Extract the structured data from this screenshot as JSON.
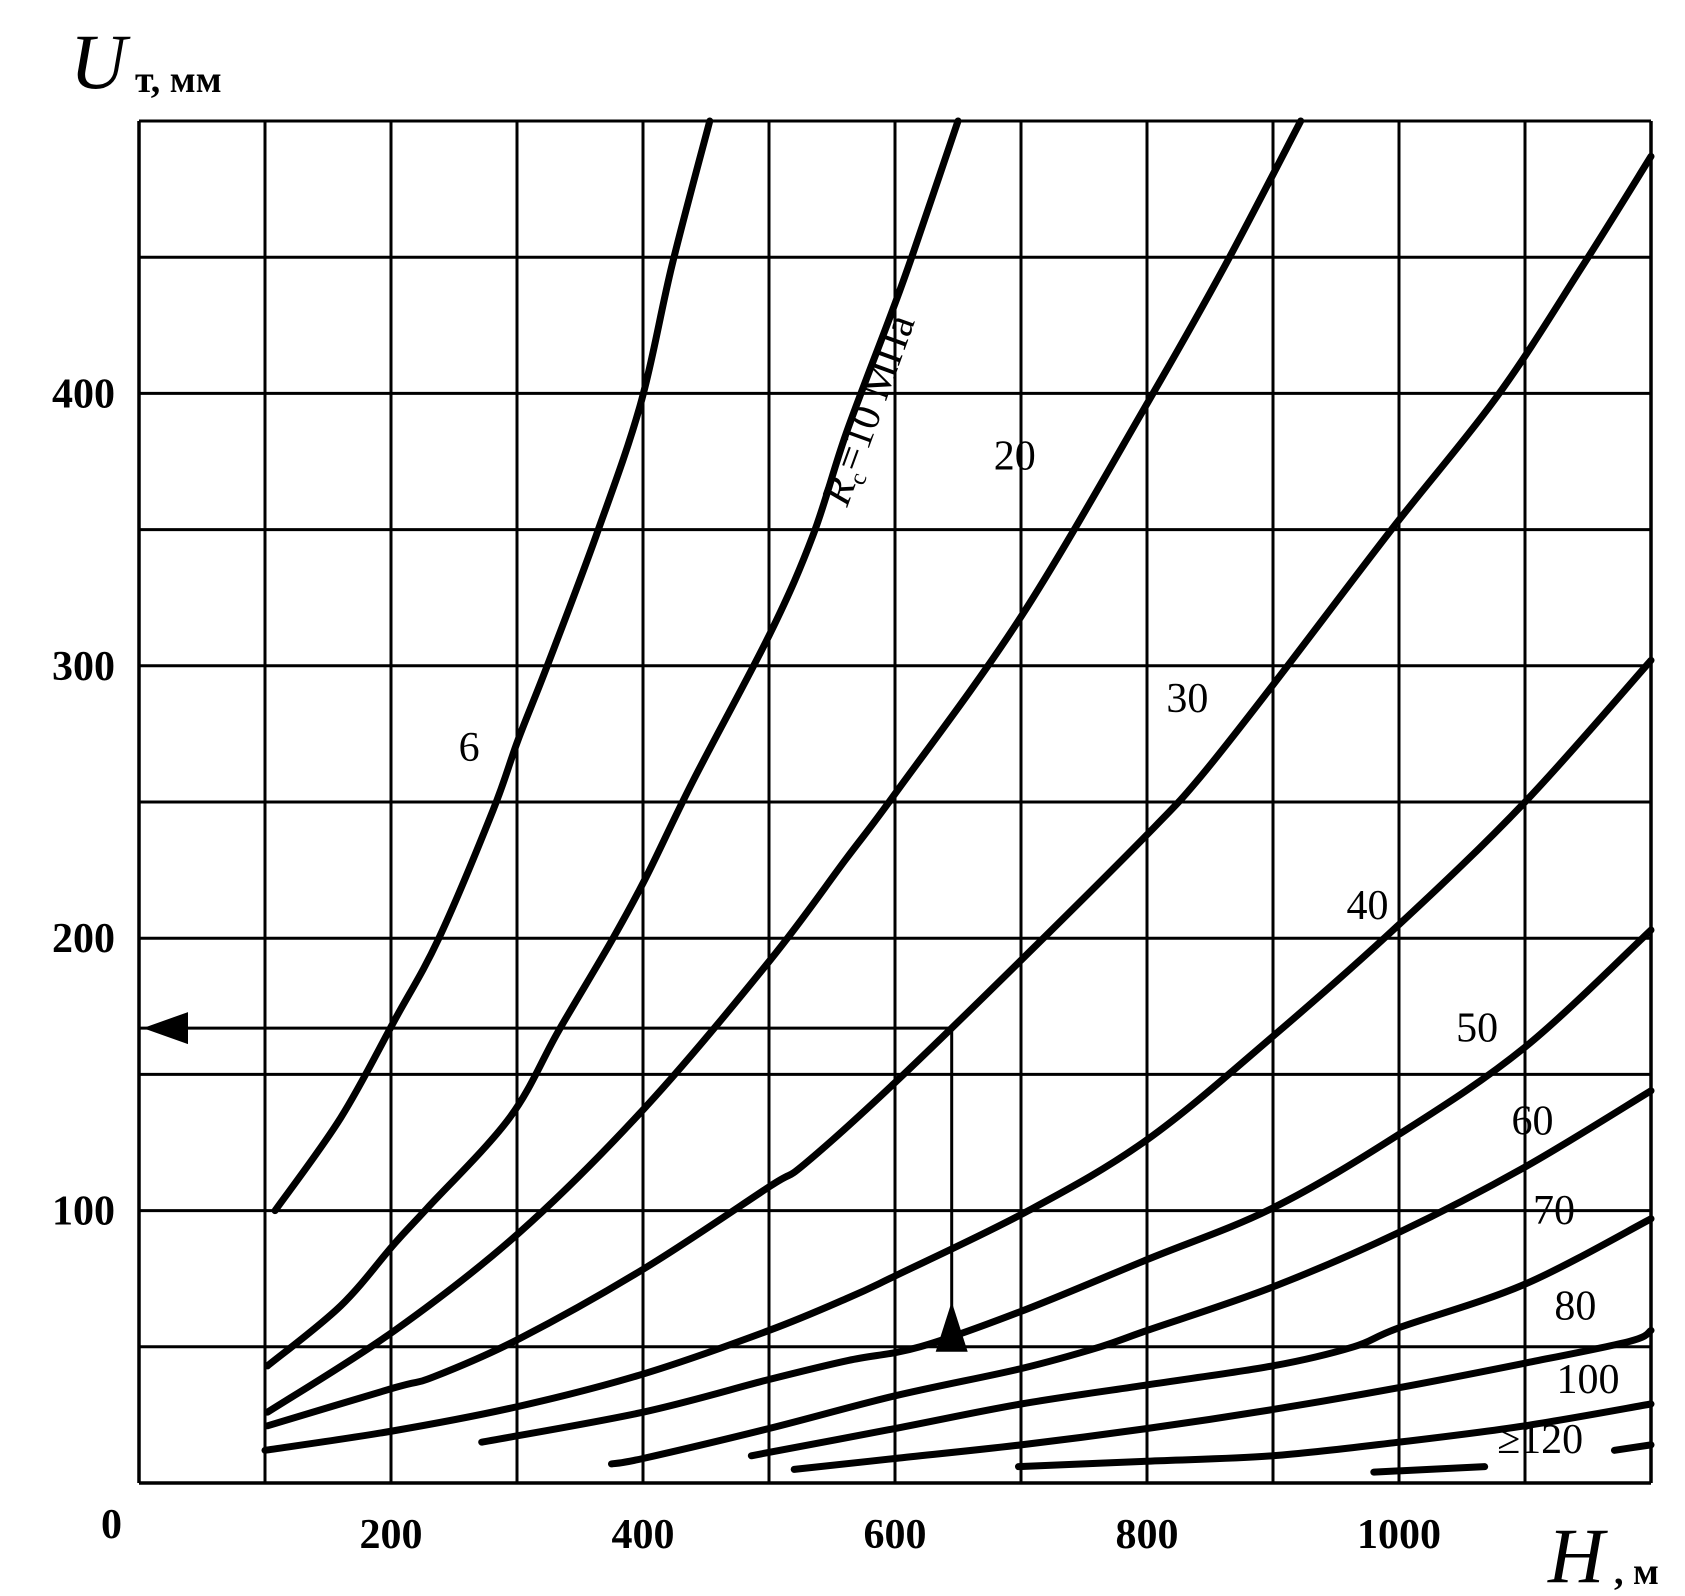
{
  "chart_data": {
    "type": "line",
    "title": "",
    "xlabel": {
      "symbol": "H",
      "unit": ", м"
    },
    "ylabel": {
      "symbol": "U",
      "unit": "т, мм"
    },
    "xlim": [
      0,
      1200
    ],
    "ylim": [
      0,
      500
    ],
    "grid": true,
    "grid_step": {
      "x": 100,
      "y": 50
    },
    "x_ticks": [
      "200",
      "400",
      "600",
      "800",
      "1000"
    ],
    "x_tick_values": [
      200,
      400,
      600,
      800,
      1000
    ],
    "y_ticks": [
      "0",
      "100",
      "200",
      "300",
      "400"
    ],
    "y_tick_values": [
      0,
      100,
      200,
      300,
      400
    ],
    "series": [
      {
        "name": "6",
        "label": "6",
        "points": [
          [
            108,
            100
          ],
          [
            160,
            134
          ],
          [
            203,
            170
          ],
          [
            238,
            200
          ],
          [
            281,
            247
          ],
          [
            301,
            273
          ],
          [
            324,
            300
          ],
          [
            363,
            348
          ],
          [
            398,
            396
          ],
          [
            423,
            447
          ],
          [
            453,
            500
          ]
        ]
      },
      {
        "name": "10",
        "label_prefix": "R",
        "label_sub": "c",
        "label": "=10 МПа",
        "points": [
          [
            102,
            43
          ],
          [
            160,
            65
          ],
          [
            203,
            88
          ],
          [
            229,
            101
          ],
          [
            294,
            134
          ],
          [
            333,
            166
          ],
          [
            375,
            199
          ],
          [
            402,
            222
          ],
          [
            440,
            258
          ],
          [
            501,
            312
          ],
          [
            535,
            348
          ],
          [
            561,
            385
          ],
          [
            596,
            428
          ],
          [
            614,
            451
          ],
          [
            650,
            500
          ]
        ]
      },
      {
        "name": "20",
        "label": "20",
        "points": [
          [
            102,
            26
          ],
          [
            203,
            56
          ],
          [
            302,
            92
          ],
          [
            402,
            138
          ],
          [
            501,
            192
          ],
          [
            561,
            229
          ],
          [
            600,
            253
          ],
          [
            700,
            318
          ],
          [
            801,
            397
          ],
          [
            862,
            447
          ],
          [
            922,
            500
          ]
        ]
      },
      {
        "name": "30",
        "label": "30",
        "points": [
          [
            102,
            21
          ],
          [
            203,
            35
          ],
          [
            234,
            39
          ],
          [
            302,
            53
          ],
          [
            402,
            79
          ],
          [
            501,
            109
          ],
          [
            528,
            117
          ],
          [
            600,
            147
          ],
          [
            698,
            191
          ],
          [
            800,
            238
          ],
          [
            842,
            259
          ],
          [
            900,
            293
          ],
          [
            994,
            350
          ],
          [
            1078,
            399
          ],
          [
            1146,
            447
          ],
          [
            1200,
            487
          ]
        ]
      },
      {
        "name": "40",
        "label": "40",
        "points": [
          [
            100,
            12
          ],
          [
            200,
            19
          ],
          [
            300,
            28
          ],
          [
            400,
            40
          ],
          [
            500,
            56
          ],
          [
            563,
            68
          ],
          [
            600,
            76
          ],
          [
            706,
            100
          ],
          [
            800,
            126
          ],
          [
            900,
            164
          ],
          [
            1000,
            205
          ],
          [
            1100,
            250
          ],
          [
            1200,
            302
          ]
        ]
      },
      {
        "name": "50",
        "label": "50",
        "points": [
          [
            272,
            15
          ],
          [
            400,
            26
          ],
          [
            500,
            38
          ],
          [
            563,
            45
          ],
          [
            620,
            50
          ],
          [
            700,
            63
          ],
          [
            800,
            82
          ],
          [
            900,
            101
          ],
          [
            1000,
            128
          ],
          [
            1100,
            160
          ],
          [
            1200,
            203
          ]
        ]
      },
      {
        "name": "60",
        "label": "60",
        "points": [
          [
            375,
            7
          ],
          [
            400,
            9
          ],
          [
            500,
            20
          ],
          [
            600,
            32
          ],
          [
            700,
            42
          ],
          [
            763,
            50
          ],
          [
            800,
            56
          ],
          [
            900,
            72
          ],
          [
            1000,
            92
          ],
          [
            1100,
            116
          ],
          [
            1200,
            144
          ]
        ]
      },
      {
        "name": "70",
        "label": "70",
        "points": [
          [
            486,
            10
          ],
          [
            600,
            20
          ],
          [
            700,
            29
          ],
          [
            800,
            36
          ],
          [
            900,
            43
          ],
          [
            964,
            50
          ],
          [
            1000,
            57
          ],
          [
            1100,
            73
          ],
          [
            1200,
            97
          ]
        ]
      },
      {
        "name": "80",
        "label": "80",
        "points": [
          [
            520,
            5
          ],
          [
            600,
            9
          ],
          [
            700,
            14
          ],
          [
            800,
            20
          ],
          [
            900,
            27
          ],
          [
            1000,
            35
          ],
          [
            1100,
            44
          ],
          [
            1183,
            52
          ],
          [
            1200,
            56
          ]
        ]
      },
      {
        "name": "100",
        "label": "100",
        "points": [
          [
            698,
            6
          ],
          [
            800,
            8
          ],
          [
            900,
            10
          ],
          [
            1000,
            15
          ],
          [
            1100,
            21
          ],
          [
            1200,
            29
          ]
        ]
      },
      {
        "name": "120",
        "label": "≥120",
        "segments": [
          [
            [
              980,
              4
            ],
            [
              1068,
              6
            ]
          ],
          [
            [
              1171,
              12
            ],
            [
              1200,
              14
            ]
          ]
        ]
      }
    ],
    "annotations": {
      "example_point": {
        "H": 645,
        "U": 50,
        "marker": "up-triangle"
      },
      "result_level": {
        "U": 167,
        "marker": "left-triangle"
      }
    }
  }
}
